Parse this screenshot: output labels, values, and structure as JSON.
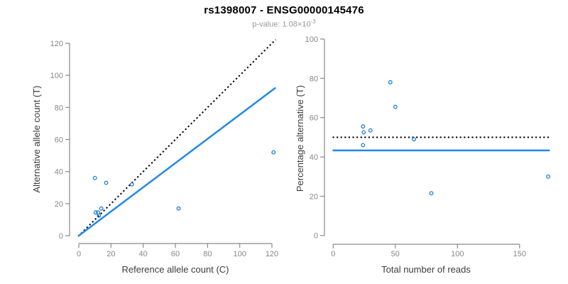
{
  "header": {
    "title": "rs1398007 - ENSG00000145476",
    "subtitle_prefix": "p-value: ",
    "subtitle_mantissa": "1.08×10",
    "subtitle_exponent": "-3"
  },
  "colors": {
    "point": "#1E7FD9",
    "fit_line": "#2189EA",
    "reference_line": "#000000",
    "axis": "#8A8A8A",
    "tick_label": "#878787",
    "axis_title": "#3D3D3D",
    "title": "#000000",
    "subtitle": "#9A9A9A"
  },
  "chart_data": [
    {
      "type": "scatter",
      "name": "allele-counts-scatter",
      "xlabel": "Reference allele count (C)",
      "ylabel": "Alternative allele count (T)",
      "xlim": [
        0,
        120
      ],
      "ylim": [
        0,
        120
      ],
      "xticks": [
        0,
        20,
        40,
        60,
        80,
        100,
        120
      ],
      "yticks": [
        0,
        20,
        40,
        60,
        80,
        100,
        120
      ],
      "grid": false,
      "points": [
        [
          10,
          36
        ],
        [
          17,
          33
        ],
        [
          33,
          32
        ],
        [
          62,
          17
        ],
        [
          121,
          52
        ],
        [
          14,
          17
        ],
        [
          10.5,
          14.5
        ],
        [
          12,
          14.5
        ],
        [
          12.5,
          12.5
        ]
      ],
      "lines": [
        {
          "name": "identity-line",
          "style": "dotted",
          "slope": 1,
          "intercept": 0,
          "color_key": "reference_line"
        },
        {
          "name": "regression-line",
          "style": "solid",
          "slope": 0.755,
          "intercept": 0,
          "color_key": "fit_line"
        }
      ]
    },
    {
      "type": "scatter",
      "name": "percentage-vs-reads-scatter",
      "xlabel": "Total number of reads",
      "ylabel": "Percentage alternative (T)",
      "xlim": [
        0,
        175
      ],
      "ylim": [
        0,
        100
      ],
      "xticks": [
        0,
        50,
        100,
        150
      ],
      "yticks": [
        0,
        20,
        40,
        60,
        80,
        100
      ],
      "grid": false,
      "points": [
        [
          46,
          78
        ],
        [
          50,
          65.5
        ],
        [
          65,
          49
        ],
        [
          79,
          21.5
        ],
        [
          173,
          30
        ],
        [
          30,
          53.5
        ],
        [
          24,
          55.5
        ],
        [
          24.5,
          52.5
        ],
        [
          24,
          46
        ]
      ],
      "lines": [
        {
          "name": "fifty-percent-line",
          "style": "dotted",
          "y": 50,
          "color_key": "reference_line"
        },
        {
          "name": "mean-percentage-line",
          "style": "solid",
          "y": 43.3,
          "color_key": "fit_line"
        }
      ]
    }
  ]
}
